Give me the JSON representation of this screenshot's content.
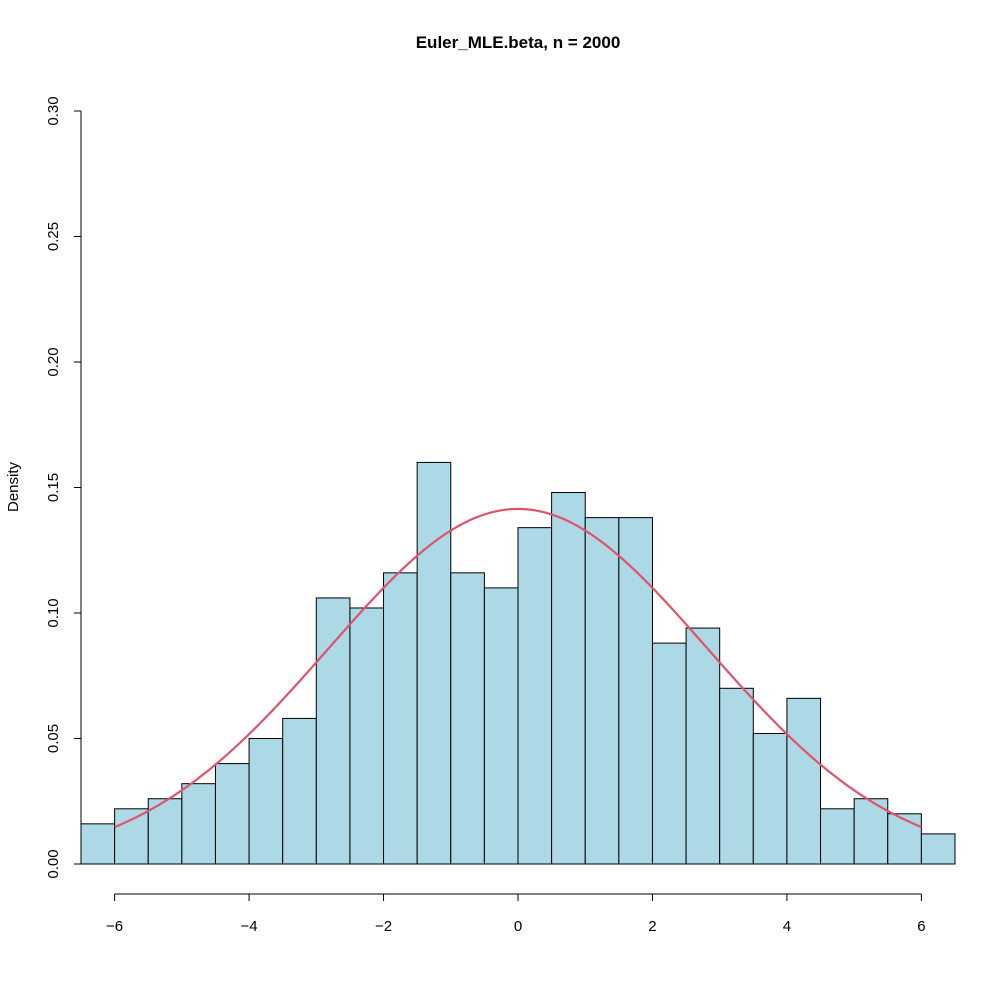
{
  "chart_data": {
    "type": "bar",
    "title": "Euler_MLE.beta, n = 2000",
    "xlabel": "",
    "ylabel": "Density",
    "xlim": [
      -6.5,
      6.5
    ],
    "ylim": [
      0,
      0.3
    ],
    "x_ticks": [
      -6,
      -4,
      -2,
      0,
      2,
      4,
      6
    ],
    "x_tick_labels": [
      "−6",
      "−4",
      "−2",
      "0",
      "2",
      "4",
      "6"
    ],
    "y_ticks": [
      0.0,
      0.05,
      0.1,
      0.15,
      0.2,
      0.25,
      0.3
    ],
    "y_tick_labels": [
      "0.00",
      "0.05",
      "0.10",
      "0.15",
      "0.20",
      "0.25",
      "0.30"
    ],
    "bin_width": 0.5,
    "bin_edges": [
      -6.5,
      -6.0,
      -5.5,
      -5.0,
      -4.5,
      -4.0,
      -3.5,
      -3.0,
      -2.5,
      -2.0,
      -1.5,
      -1.0,
      -0.5,
      0.0,
      0.5,
      1.0,
      1.5,
      2.0,
      2.5,
      3.0,
      3.5,
      4.0,
      4.5,
      5.0,
      5.5,
      6.0,
      6.5
    ],
    "values": [
      0.016,
      0.022,
      0.026,
      0.032,
      0.04,
      0.05,
      0.058,
      0.106,
      0.102,
      0.116,
      0.16,
      0.116,
      0.11,
      0.134,
      0.148,
      0.138,
      0.138,
      0.088,
      0.094,
      0.07,
      0.052,
      0.066,
      0.022,
      0.026,
      0.02,
      0.012
    ],
    "bar_color": "#add8e6",
    "density_curve": {
      "type": "normal",
      "mean": 0,
      "sd": 2.82,
      "x_range": [
        -6,
        6
      ],
      "color": "#df536b"
    },
    "grid": false
  }
}
